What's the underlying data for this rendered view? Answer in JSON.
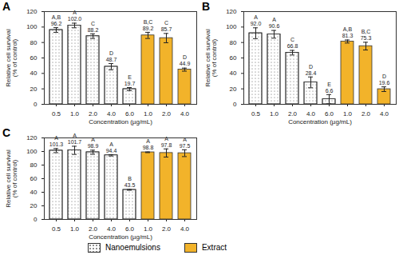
{
  "chart_data": [
    {
      "type": "bar",
      "title": "A",
      "x_label": "Concentration (µg/mL)",
      "y_label": "Relative cell survival\n(% of control)",
      "categories": [
        "0.5",
        "1.0",
        "2.0",
        "4.0",
        "6.0",
        "1.0",
        "2.0",
        "4.0"
      ],
      "ylim": [
        0,
        120
      ],
      "yticks": [
        0,
        20,
        40,
        60,
        80,
        100,
        120
      ],
      "data_labels": true,
      "legend": "bottom",
      "series": [
        {
          "name": "Nanoemulsions",
          "color": "#ffffff",
          "values": [
            96.2,
            102.0,
            88.2,
            48.7,
            19.7,
            null,
            null,
            null
          ],
          "value_labels": [
            "96.2",
            "102.0",
            "88.2",
            "48.7",
            "19.7",
            null,
            null,
            null
          ],
          "errors": [
            3,
            3,
            3,
            4,
            2,
            null,
            null,
            null
          ],
          "letters": [
            "A,B",
            "A",
            "C",
            "D",
            "E",
            null,
            null,
            null
          ]
        },
        {
          "name": "Extract",
          "color": "#f2b32a",
          "values": [
            null,
            null,
            null,
            null,
            null,
            89.2,
            85.7,
            44.9
          ],
          "value_labels": [
            null,
            null,
            null,
            null,
            null,
            "89.2",
            "85.7",
            "44.9"
          ],
          "errors": [
            null,
            null,
            null,
            null,
            null,
            4,
            6,
            2
          ],
          "letters": [
            null,
            null,
            null,
            null,
            null,
            "B,C",
            "C",
            "D"
          ]
        }
      ]
    },
    {
      "type": "bar",
      "title": "B",
      "x_label": "Concentration (µg/mL)",
      "y_label": "Relative cell survival\n(% of control)",
      "categories": [
        "0.5",
        "1.0",
        "2.0",
        "4.0",
        "6.0",
        "1.0",
        "2.0",
        "4.0"
      ],
      "ylim": [
        0,
        120
      ],
      "yticks": [
        0,
        20,
        40,
        60,
        80,
        100,
        120
      ],
      "data_labels": true,
      "legend": "bottom",
      "series": [
        {
          "name": "Nanoemulsions",
          "color": "#ffffff",
          "values": [
            92.0,
            90.6,
            66.8,
            28.4,
            6.6,
            null,
            null,
            null
          ],
          "value_labels": [
            "92.0",
            "90.6",
            "66.8",
            "28.4",
            "6.6",
            null,
            null,
            null
          ],
          "errors": [
            7,
            5,
            3,
            7,
            6,
            null,
            null,
            null
          ],
          "letters": [
            "A",
            "A",
            "C",
            "D",
            "E",
            null,
            null,
            null
          ]
        },
        {
          "name": "Extract",
          "color": "#f2b32a",
          "values": [
            null,
            null,
            null,
            null,
            null,
            81.3,
            75.3,
            19.6
          ],
          "value_labels": [
            null,
            null,
            null,
            null,
            null,
            "81.3",
            "75.3",
            "19.6"
          ],
          "errors": [
            null,
            null,
            null,
            null,
            null,
            2,
            5,
            3
          ],
          "letters": [
            null,
            null,
            null,
            null,
            null,
            "A,B",
            "B,C",
            "D"
          ]
        }
      ]
    },
    {
      "type": "bar",
      "title": "C",
      "x_label": "Concentration (µg/mL)",
      "y_label": "Relative cell survival\n(% of control)",
      "categories": [
        "0.5",
        "1.0",
        "2.0",
        "4.0",
        "6.0",
        "1.0",
        "2.0",
        "4.0"
      ],
      "ylim": [
        0,
        120
      ],
      "yticks": [
        0,
        20,
        40,
        60,
        80,
        100,
        120
      ],
      "data_labels": true,
      "legend": "bottom",
      "series": [
        {
          "name": "Nanoemulsions",
          "color": "#ffffff",
          "values": [
            101.3,
            101.7,
            98.9,
            94.4,
            43.5,
            null,
            null,
            null
          ],
          "value_labels": [
            "101.3",
            "101.7",
            "98.9",
            "94.4",
            "43.5",
            null,
            null,
            null
          ],
          "errors": [
            3,
            6,
            3,
            1,
            0.5,
            null,
            null,
            null
          ],
          "letters": [
            "A",
            "A",
            "A",
            "A",
            "B",
            null,
            null,
            null
          ]
        },
        {
          "name": "Extract",
          "color": "#f2b32a",
          "values": [
            null,
            null,
            null,
            null,
            null,
            98.8,
            97.8,
            97.5
          ],
          "value_labels": [
            null,
            null,
            null,
            null,
            null,
            "98.8",
            "97.8",
            "97.5"
          ],
          "errors": [
            null,
            null,
            null,
            null,
            null,
            0.5,
            6,
            5
          ],
          "letters": [
            null,
            null,
            null,
            null,
            null,
            "A",
            "A",
            "A"
          ]
        }
      ]
    }
  ]
}
